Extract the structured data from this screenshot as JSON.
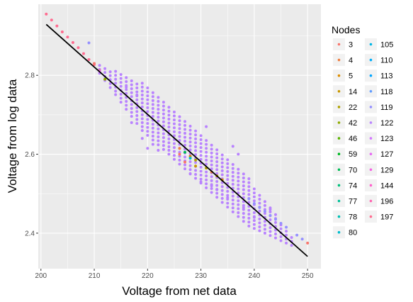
{
  "chart_data": {
    "type": "scatter",
    "title": "",
    "xlabel": "Voltage from net data",
    "ylabel": "Voltage from log data",
    "xlim": [
      199.5,
      252.5
    ],
    "ylim": [
      2.31,
      2.98
    ],
    "x_ticks": [
      200,
      210,
      220,
      230,
      240,
      250
    ],
    "y_ticks": [
      2.4,
      2.6,
      2.8
    ],
    "x_tick_labels": [
      "200",
      "210",
      "220",
      "230",
      "240",
      "250"
    ],
    "y_tick_labels": [
      "2.4",
      "2.6",
      "2.8"
    ],
    "grid": true,
    "legend": {
      "title": "Nodes",
      "position": "right",
      "columns": 2,
      "entries": [
        {
          "label": "3",
          "color": "#F8766D"
        },
        {
          "label": "4",
          "color": "#EE8043"
        },
        {
          "label": "5",
          "color": "#DD8D00"
        },
        {
          "label": "14",
          "color": "#C99800"
        },
        {
          "label": "22",
          "color": "#AFA100"
        },
        {
          "label": "42",
          "color": "#8EAB00"
        },
        {
          "label": "46",
          "color": "#5BB300"
        },
        {
          "label": "59",
          "color": "#00B823"
        },
        {
          "label": "70",
          "color": "#00BC56"
        },
        {
          "label": "74",
          "color": "#00BF7A"
        },
        {
          "label": "77",
          "color": "#00C098"
        },
        {
          "label": "78",
          "color": "#00C0B4"
        },
        {
          "label": "80",
          "color": "#00BDCE"
        },
        {
          "label": "105",
          "color": "#00B7E6"
        },
        {
          "label": "110",
          "color": "#00AEFA"
        },
        {
          "label": "113",
          "color": "#00A5FF"
        },
        {
          "label": "118",
          "color": "#619CFF"
        },
        {
          "label": "119",
          "color": "#9590FF"
        },
        {
          "label": "122",
          "color": "#B983FF"
        },
        {
          "label": "123",
          "color": "#D376FF"
        },
        {
          "label": "127",
          "color": "#E76BF3"
        },
        {
          "label": "129",
          "color": "#F564E3"
        },
        {
          "label": "144",
          "color": "#FF61CC"
        },
        {
          "label": "196",
          "color": "#FF64B0"
        },
        {
          "label": "197",
          "color": "#FF6C90"
        }
      ]
    },
    "fit_line": {
      "x": [
        201,
        250
      ],
      "y": [
        2.929,
        2.341
      ],
      "color": "#000000"
    },
    "series": [
      {
        "node": "197",
        "points": [
          [
            201,
            2.955
          ],
          [
            202,
            2.94
          ],
          [
            203,
            2.925
          ],
          [
            204,
            2.91
          ],
          [
            205,
            2.897
          ],
          [
            206,
            2.883
          ],
          [
            207,
            2.87
          ],
          [
            208,
            2.855
          ],
          [
            209,
            2.84
          ],
          [
            210,
            2.827
          ],
          [
            211,
            2.812
          ]
        ]
      },
      {
        "node": "3",
        "points": [
          [
            250,
            2.375
          ],
          [
            226,
            2.6
          ],
          [
            227,
            2.58
          ],
          [
            210,
            2.83
          ]
        ]
      },
      {
        "node": "119",
        "points": [
          [
            209,
            2.882
          ],
          [
            249,
            2.385
          ],
          [
            248,
            2.395
          ],
          [
            246,
            2.415
          ],
          [
            245,
            2.425
          ],
          [
            244,
            2.435
          ],
          [
            243,
            2.445
          ],
          [
            242,
            2.455
          ],
          [
            241,
            2.465
          ],
          [
            240,
            2.475
          ],
          [
            239,
            2.487
          ]
        ]
      },
      {
        "node": "4",
        "points": [
          [
            226,
            2.615
          ],
          [
            232,
            2.555
          ]
        ]
      },
      {
        "node": "5",
        "points": [
          [
            228,
            2.595
          ],
          [
            234,
            2.535
          ]
        ]
      },
      {
        "node": "14",
        "points": [
          [
            229,
            2.57
          ],
          [
            233,
            2.545
          ]
        ]
      },
      {
        "node": "22",
        "points": [
          [
            229,
            2.585
          ],
          [
            231,
            2.565
          ]
        ]
      },
      {
        "node": "42",
        "points": [
          [
            212,
            2.79
          ]
        ]
      },
      {
        "node": "70",
        "points": [
          [
            227,
            2.605
          ]
        ]
      },
      {
        "node": "80",
        "points": [
          [
            228,
            2.59
          ]
        ]
      },
      {
        "node": "127",
        "points": [
          [
            211,
            2.81
          ]
        ]
      },
      {
        "node": "122",
        "cloud": {
          "x_range": [
            211,
            247
          ],
          "slope": -0.0121,
          "center_at_x": 211,
          "center_y": 2.8168,
          "spread": 0.06
        },
        "extra_points": [
          [
            217,
            2.68
          ],
          [
            219,
            2.64
          ],
          [
            220,
            2.615
          ],
          [
            222,
            2.61
          ],
          [
            221,
            2.625
          ],
          [
            232,
            2.52
          ],
          [
            236,
            2.62
          ],
          [
            237,
            2.6
          ],
          [
            231,
            2.67
          ],
          [
            228,
            2.55
          ],
          [
            230,
            2.53
          ],
          [
            233,
            2.51
          ],
          [
            235,
            2.49
          ],
          [
            238,
            2.465
          ],
          [
            240,
            2.44
          ],
          [
            243,
            2.46
          ],
          [
            216,
            2.77
          ],
          [
            218,
            2.75
          ]
        ]
      }
    ]
  }
}
